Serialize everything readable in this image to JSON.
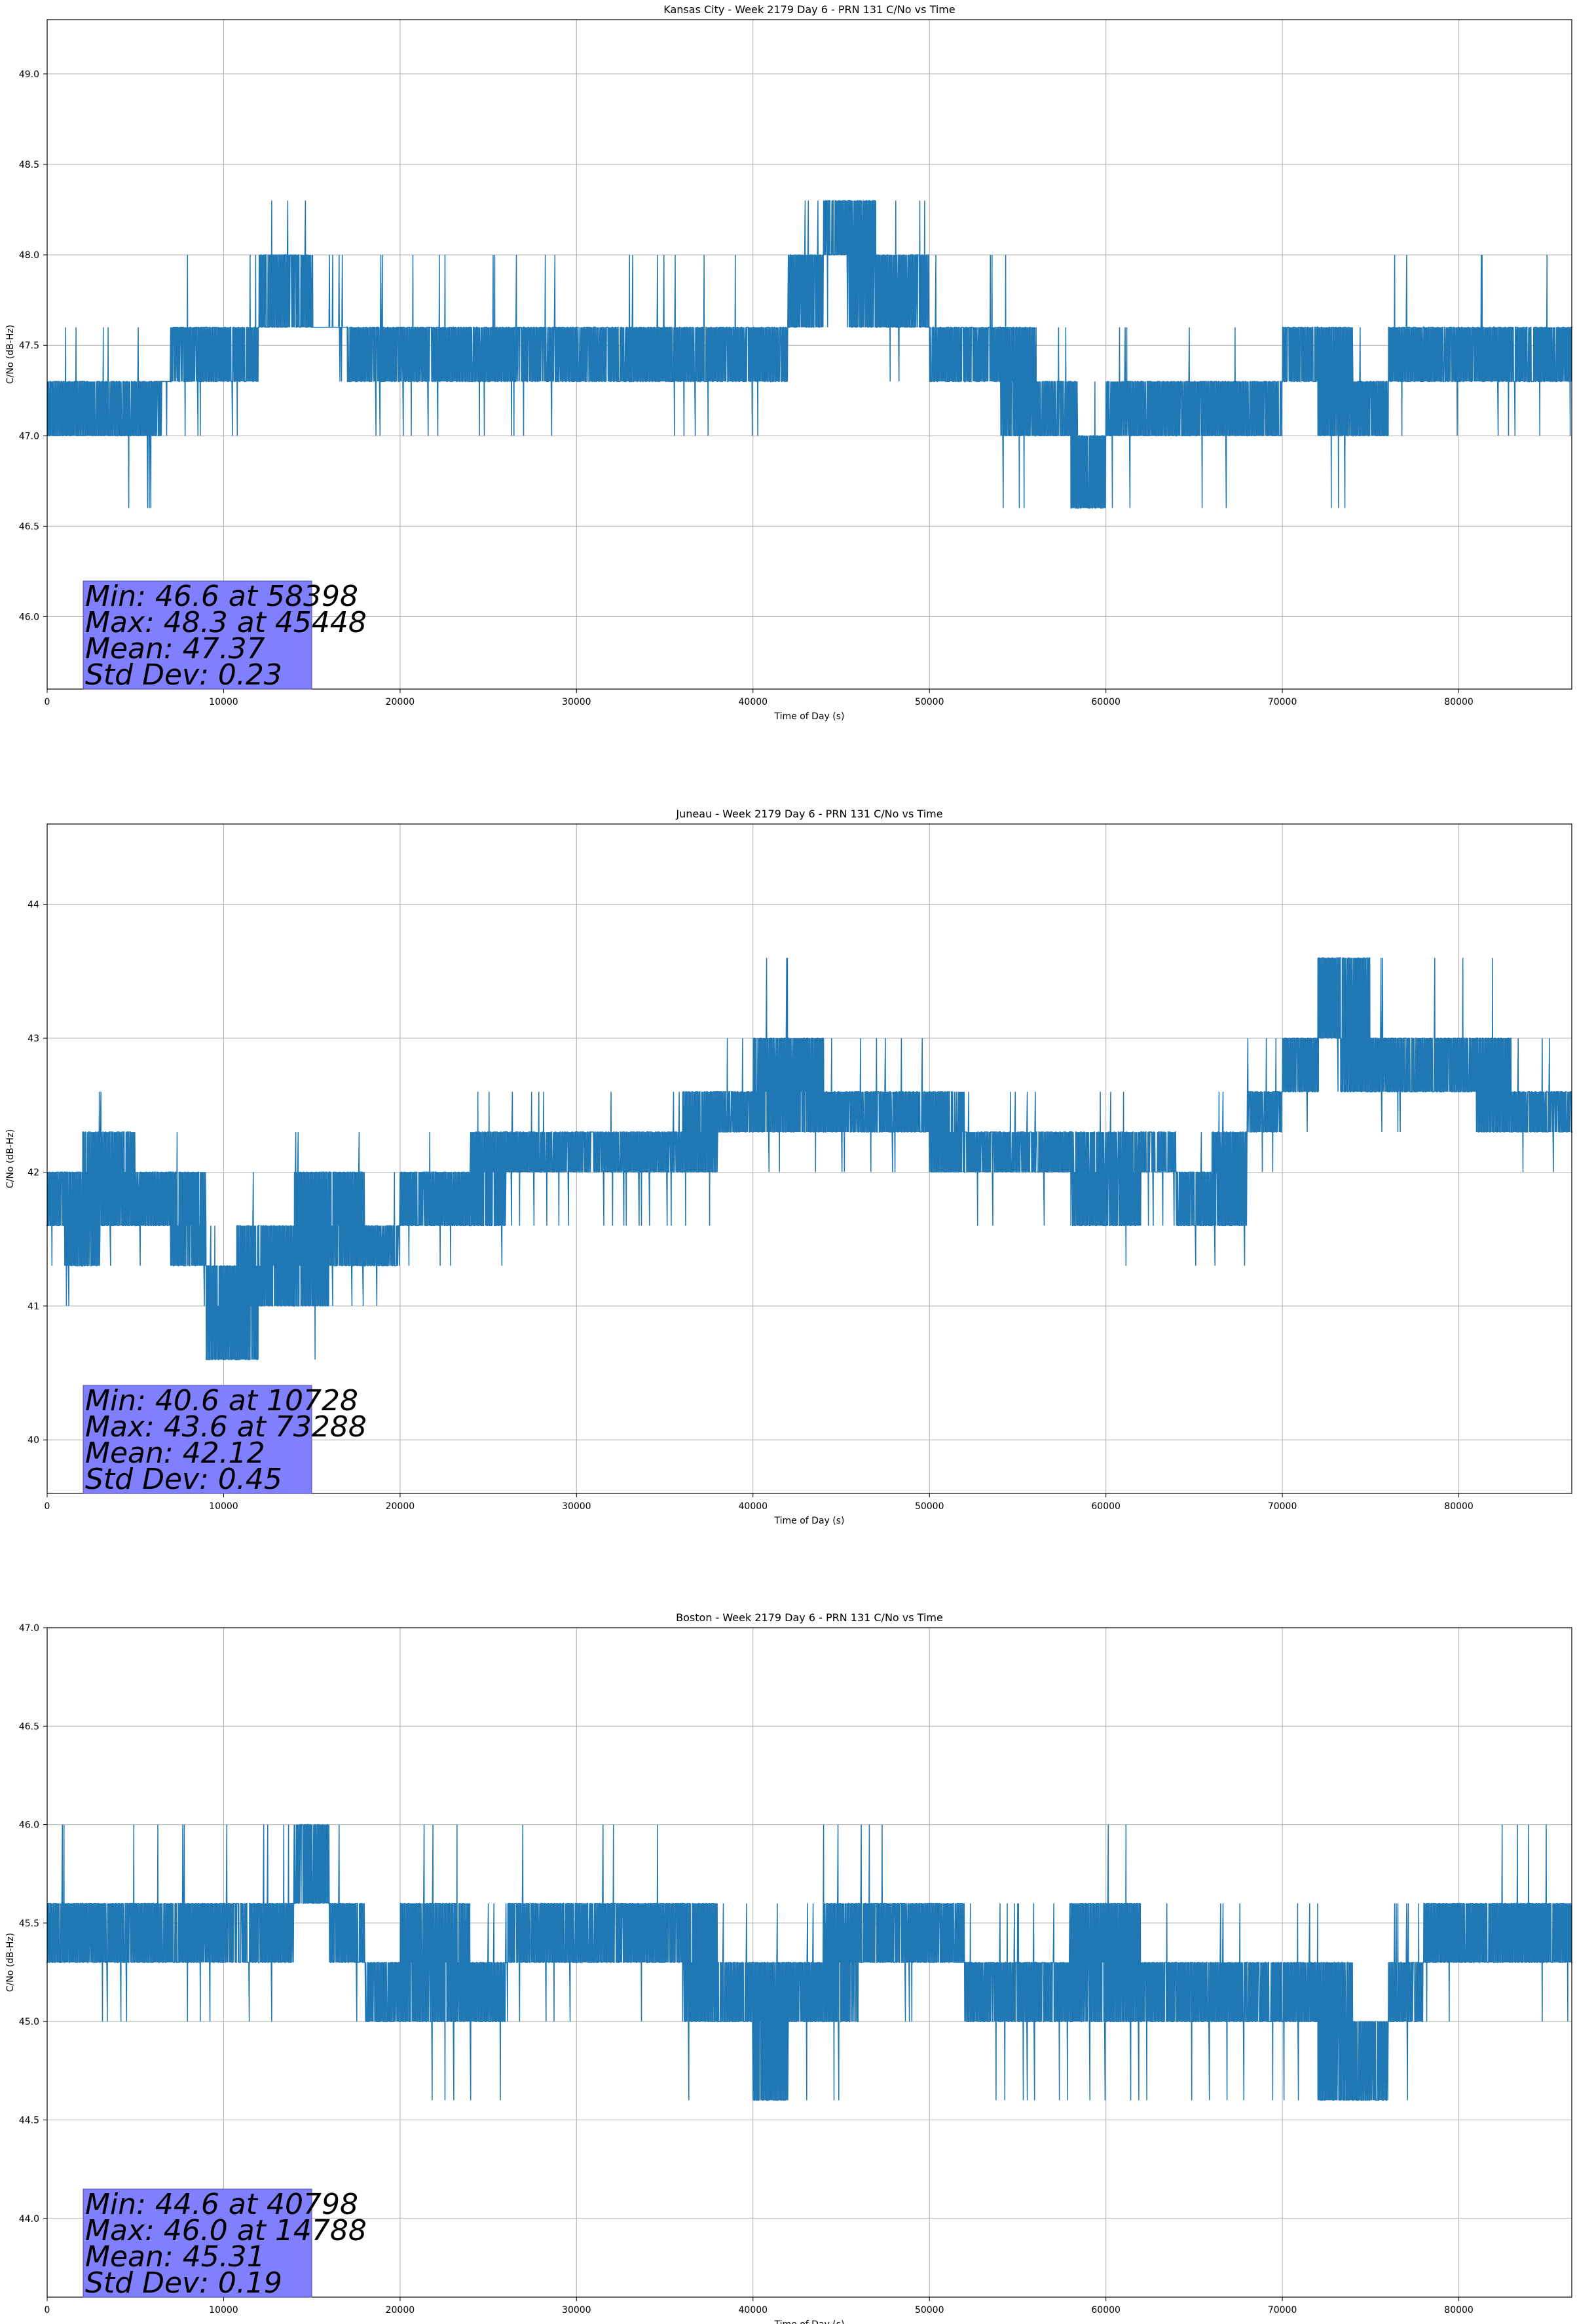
{
  "chart_data": [
    {
      "type": "line",
      "title": "Kansas City - Week 2179 Day 6 - PRN 131 C/No vs Time",
      "xlabel": "Time of Day (s)",
      "ylabel": "C/No (dB-Hz)",
      "xlim": [
        0,
        86400
      ],
      "ylim": [
        45.6,
        49.3
      ],
      "xticks": [
        0,
        10000,
        20000,
        30000,
        40000,
        50000,
        60000,
        70000,
        80000
      ],
      "yticks": [
        "46.0",
        "46.5",
        "47.0",
        "47.5",
        "48.0",
        "48.5",
        "49.0"
      ],
      "grid": true,
      "color": "#1f77b4",
      "series": [
        {
          "name": "C/No",
          "x": [
            0,
            2000,
            4000,
            6500,
            7000,
            9000,
            10500,
            12000,
            13500,
            15000,
            17000,
            17500,
            19000,
            21000,
            23000,
            25000,
            27000,
            29000,
            31000,
            33000,
            35000,
            37000,
            39000,
            41000,
            42000,
            44000,
            45448,
            47000,
            49000,
            50000,
            52000,
            54000,
            56000,
            58000,
            58398,
            60000,
            62000,
            64000,
            66000,
            68000,
            70000,
            72000,
            74000,
            76000,
            78000,
            80000,
            82000,
            84000,
            86400
          ],
          "values": [
            47.0,
            47.3,
            47.0,
            47.3,
            47.3,
            47.6,
            47.3,
            47.6,
            48.0,
            47.6,
            47.6,
            47.3,
            47.6,
            47.3,
            47.6,
            47.3,
            47.6,
            47.3,
            47.6,
            47.3,
            47.6,
            47.3,
            47.6,
            47.3,
            47.6,
            48.0,
            48.3,
            47.6,
            48.0,
            47.6,
            47.3,
            47.6,
            47.0,
            47.3,
            46.6,
            47.0,
            47.3,
            47.0,
            47.3,
            47.0,
            47.3,
            47.6,
            47.0,
            47.3,
            47.6,
            47.3,
            47.6,
            47.3,
            47.6
          ]
        }
      ],
      "stats": [
        "Min: 46.6 at 58398",
        "Max: 48.3 at 45448",
        "Mean: 47.37",
        "Std Dev: 0.23"
      ]
    },
    {
      "type": "line",
      "title": "Juneau - Week 2179 Day 6 - PRN 131 C/No vs Time",
      "xlabel": "Time of Day (s)",
      "ylabel": "C/No (dB-Hz)",
      "xlim": [
        0,
        86400
      ],
      "ylim": [
        39.6,
        44.6
      ],
      "xticks": [
        0,
        10000,
        20000,
        30000,
        40000,
        50000,
        60000,
        70000,
        80000
      ],
      "yticks": [
        "40",
        "41",
        "42",
        "43",
        "44"
      ],
      "grid": true,
      "color": "#1f77b4",
      "series": [
        {
          "name": "C/No",
          "x": [
            0,
            1000,
            2000,
            3000,
            5000,
            7000,
            9000,
            10728,
            12000,
            14000,
            16000,
            18000,
            20000,
            22000,
            24000,
            26000,
            28000,
            30000,
            32000,
            34000,
            36000,
            38000,
            40000,
            42000,
            44000,
            46000,
            48000,
            50000,
            52000,
            54000,
            56000,
            58000,
            60000,
            62000,
            64000,
            66000,
            68000,
            70000,
            72000,
            73288,
            75000,
            77000,
            79000,
            81000,
            83000,
            85000,
            86400
          ],
          "values": [
            41.6,
            42.0,
            41.3,
            42.3,
            41.6,
            42.0,
            41.3,
            40.6,
            41.6,
            41.0,
            42.0,
            41.3,
            41.6,
            42.0,
            41.6,
            42.3,
            42.0,
            42.3,
            42.0,
            42.3,
            42.0,
            42.6,
            42.3,
            43.0,
            42.3,
            42.6,
            42.3,
            42.6,
            42.0,
            42.3,
            42.0,
            42.3,
            41.6,
            42.3,
            42.0,
            41.6,
            42.3,
            42.6,
            43.0,
            43.6,
            42.6,
            43.0,
            42.6,
            43.0,
            42.3,
            42.6,
            42.3
          ]
        }
      ],
      "stats": [
        "Min: 40.6 at 10728",
        "Max: 43.6 at 73288",
        "Mean: 42.12",
        "Std Dev: 0.45"
      ]
    },
    {
      "type": "line",
      "title": "Boston - Week 2179 Day 6 - PRN 131 C/No vs Time",
      "xlabel": "Time of Day (s)",
      "ylabel": "C/No (dB-Hz)",
      "xlim": [
        0,
        86400
      ],
      "ylim": [
        43.6,
        47.0
      ],
      "xticks": [
        0,
        10000,
        20000,
        30000,
        40000,
        50000,
        60000,
        70000,
        80000
      ],
      "yticks": [
        "44.0",
        "44.5",
        "45.0",
        "45.5",
        "46.0",
        "46.5",
        "47.0"
      ],
      "grid": true,
      "color": "#1f77b4",
      "series": [
        {
          "name": "C/No",
          "x": [
            0,
            2000,
            4000,
            6000,
            8000,
            10000,
            12000,
            14000,
            14788,
            16000,
            18000,
            20000,
            22000,
            24000,
            26000,
            28000,
            30000,
            32000,
            34000,
            36000,
            38000,
            40000,
            40798,
            42000,
            44000,
            46000,
            48000,
            50000,
            52000,
            54000,
            56000,
            58000,
            60000,
            62000,
            64000,
            66000,
            68000,
            70000,
            72000,
            74000,
            76000,
            78000,
            80000,
            82000,
            84000,
            86400
          ],
          "values": [
            45.3,
            45.6,
            45.3,
            45.6,
            45.3,
            45.6,
            45.3,
            45.6,
            46.0,
            45.6,
            45.3,
            45.0,
            45.6,
            45.0,
            45.3,
            45.6,
            45.3,
            45.6,
            45.3,
            45.6,
            45.0,
            45.3,
            44.6,
            45.3,
            45.0,
            45.6,
            45.3,
            45.6,
            45.3,
            45.0,
            45.3,
            45.0,
            45.6,
            45.0,
            45.3,
            45.0,
            45.3,
            45.0,
            45.3,
            44.6,
            45.0,
            45.3,
            45.6,
            45.3,
            45.6,
            45.3
          ]
        }
      ],
      "stats": [
        "Min: 44.6 at 40798",
        "Max: 46.0 at 14788",
        "Mean: 45.31",
        "Std Dev: 0.19"
      ]
    }
  ]
}
